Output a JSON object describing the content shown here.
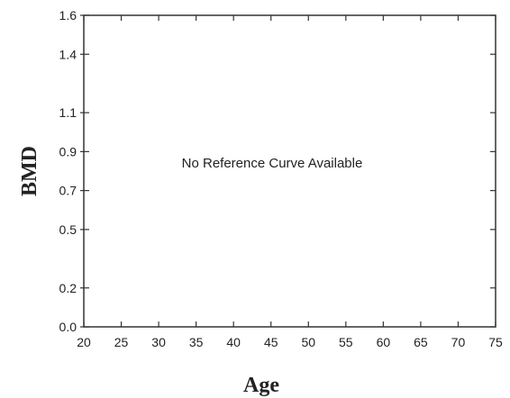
{
  "chart_data": {
    "type": "line",
    "title": "",
    "xlabel": "Age",
    "ylabel": "BMD",
    "xlim": [
      20,
      75
    ],
    "ylim": [
      0.0,
      1.6
    ],
    "x_ticks": [
      20,
      25,
      30,
      35,
      40,
      45,
      50,
      55,
      60,
      65,
      70,
      75
    ],
    "x_tick_labels": [
      "20",
      "25",
      "30",
      "35",
      "40",
      "45",
      "50",
      "55",
      "60",
      "65",
      "70",
      "75"
    ],
    "y_ticks": [
      0.0,
      0.2,
      0.5,
      0.7,
      0.9,
      1.1,
      1.4,
      1.6
    ],
    "y_tick_labels": [
      "0.0",
      "0.2",
      "0.5",
      "0.7",
      "0.9",
      "1.1",
      "1.4",
      "1.6"
    ],
    "grid": false,
    "series": [],
    "annotation": "No Reference Curve Available"
  }
}
